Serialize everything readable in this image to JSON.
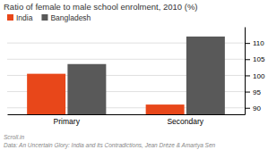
{
  "chart_data": {
    "type": "bar",
    "title": "Ratio of female to male school enrolment, 2010 (%)",
    "categories": [
      "Primary",
      "Secondary"
    ],
    "series": [
      {
        "name": "India",
        "color": "#e8471a",
        "values": [
          100.5,
          91.0
        ]
      },
      {
        "name": "Bangladesh",
        "color": "#595959",
        "values": [
          103.5,
          112.0
        ]
      }
    ],
    "ylim": [
      88,
      115
    ],
    "yticks": [
      90,
      95,
      100,
      105,
      110
    ],
    "grid": true,
    "legend": "upper left",
    "annotations": [
      "Scroll.in",
      "Data: An Uncertain Glory: India and its Contradictions, Jean Drèze & Amartya Sen"
    ]
  }
}
